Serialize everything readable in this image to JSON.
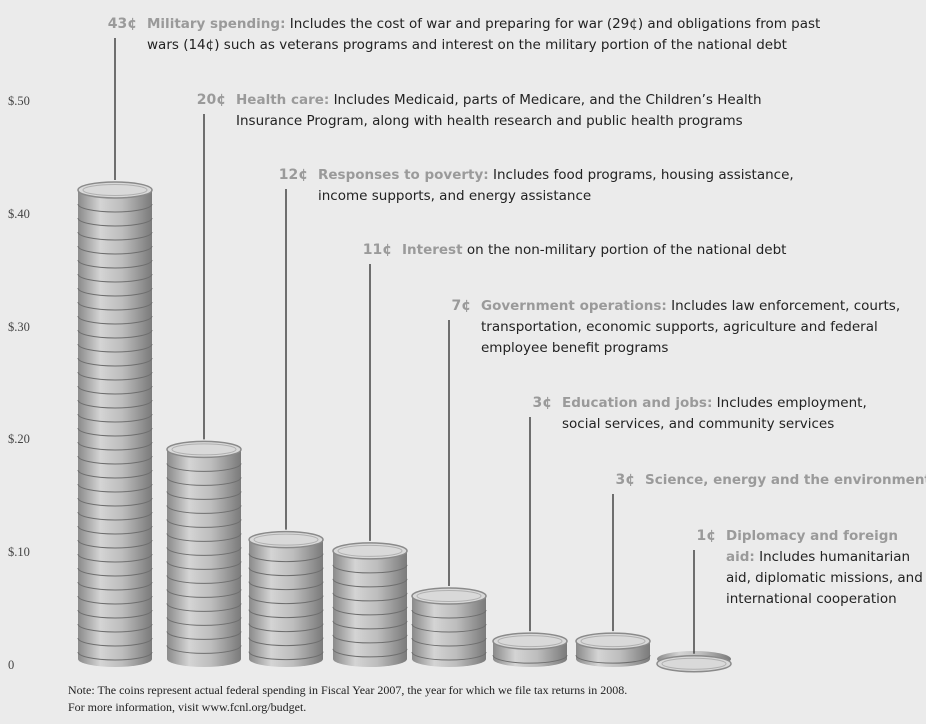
{
  "chart_data": {
    "type": "coin-stack",
    "categories": [
      "Military spending:",
      "Health care:",
      "Responses to poverty:",
      "Interest",
      "Government operations:",
      "Education and jobs:",
      "Science, energy and the environment",
      "Diplomacy and foreign aid:"
    ],
    "descriptions": [
      "Includes the cost of war and preparing for war (29¢) and obligations from past wars (14¢) such as veterans programs and interest on the military portion of the national debt",
      "Includes Medicaid, parts of Medicare, and the Children’s Health Insurance Program, along with health research and public health programs",
      "Includes food programs, housing assistance, income supports, and energy assistance",
      "on the non-military portion of the national debt",
      "Includes law enforcement, courts, transportation, economic supports, agriculture and federal employee benefit programs",
      "Includes employment, social services, and community services",
      null,
      "Includes humanitarian aid, diplomatic missions, and international cooperation"
    ],
    "values": [
      0.43,
      0.2,
      0.12,
      0.11,
      0.07,
      0.03,
      0.03,
      0.01
    ],
    "value_labels": [
      "43¢",
      "20¢",
      "12¢",
      "11¢",
      "7¢",
      "3¢",
      "3¢",
      "1¢"
    ],
    "color": "#bdbdbd",
    "ylim": [
      0,
      0.5
    ],
    "yticks": [
      0,
      {
        "value": 0.1,
        "label": "$.10"
      },
      {
        "value": 0.2,
        "label": "$.20"
      },
      {
        "value": 0.3,
        "label": "$.30"
      },
      {
        "value": 0.4,
        "label": "$.40"
      },
      {
        "value": 0.5,
        "label": "$.50"
      }
    ],
    "note": [
      "Note: The coins represent actual federal spending in Fiscal Year 2007, the year for which we file tax returns in 2008.",
      "For more information, visit www.fcnl.org/budget."
    ]
  }
}
